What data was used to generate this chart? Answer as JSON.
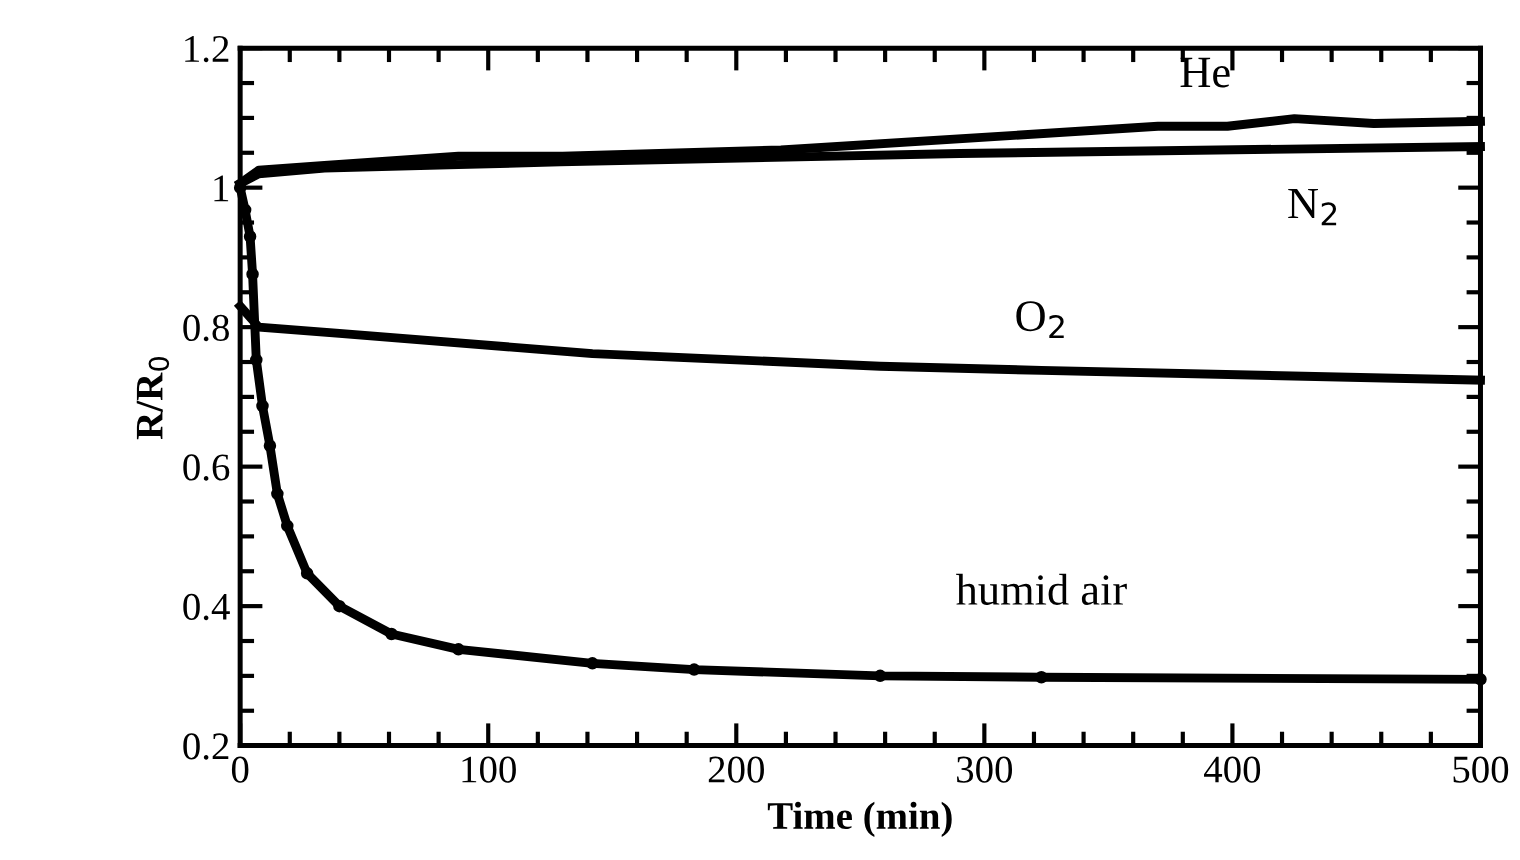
{
  "chart_data": {
    "type": "line",
    "xlabel": "Time (min)",
    "ylabel": "R/R$_{0}$",
    "xlim": [
      0,
      500
    ],
    "ylim": [
      0.2,
      1.2
    ],
    "xticks": [
      0,
      100,
      200,
      300,
      400,
      500
    ],
    "yticks": [
      0.2,
      0.4,
      0.6,
      0.8,
      1,
      {
        "value": 1.2,
        "label": "1.2"
      }
    ],
    "grid": false,
    "line_style": "solid",
    "series": [
      {
        "name": "He",
        "color": "#000000",
        "x": [
          0,
          7.5,
          34,
          88,
          130,
          218,
          370,
          398,
          425,
          457,
          500
        ],
        "values": [
          1.006,
          1.025,
          1.032,
          1.045,
          1.045,
          1.054,
          1.088,
          1.088,
          1.099,
          1.092,
          1.095
        ]
      },
      {
        "name": "N$_{2}$",
        "color": "#000000",
        "x": [
          0,
          7.5,
          34,
          88,
          129,
          290,
          500
        ],
        "values": [
          1.006,
          1.02,
          1.028,
          1.033,
          1.037,
          1.049,
          1.059
        ]
      },
      {
        "name": "O$_{2}$",
        "color": "#000000",
        "x": [
          0,
          7.5,
          40,
          142,
          258,
          323,
          500
        ],
        "values": [
          0.83,
          0.8,
          0.791,
          0.762,
          0.744,
          0.738,
          0.724
        ]
      },
      {
        "name": "humid air",
        "color": "#000000",
        "marker": "circle",
        "x": [
          0,
          2,
          4,
          5,
          6.5,
          9,
          12,
          15,
          19,
          27,
          40,
          61,
          88,
          142,
          183,
          258,
          323,
          500
        ],
        "values": [
          1.0,
          0.968,
          0.93,
          0.876,
          0.753,
          0.687,
          0.63,
          0.561,
          0.515,
          0.447,
          0.4,
          0.36,
          0.338,
          0.318,
          0.309,
          0.3,
          0.298,
          0.295
        ]
      }
    ]
  }
}
